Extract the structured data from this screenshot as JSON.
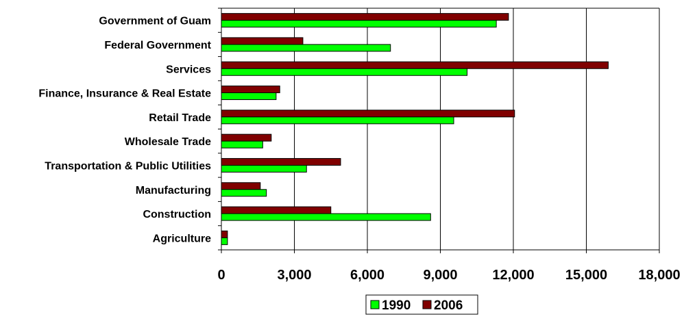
{
  "chart_data": {
    "type": "bar",
    "orientation": "horizontal",
    "categories": [
      "Government of Guam",
      "Federal Government",
      "Services",
      "Finance, Insurance & Real Estate",
      "Retail Trade",
      "Wholesale Trade",
      "Transportation & Public Utilities",
      "Manufacturing",
      "Construction",
      "Agriculture"
    ],
    "series": [
      {
        "name": "1990",
        "color": "#00ff00",
        "values": [
          11300,
          6950,
          10100,
          2250,
          9550,
          1700,
          3500,
          1850,
          8600,
          250
        ]
      },
      {
        "name": "2006",
        "color": "#800000",
        "values": [
          11800,
          3350,
          15900,
          2400,
          12050,
          2050,
          4900,
          1600,
          4500,
          250
        ]
      }
    ],
    "xlim": [
      0,
      18000
    ],
    "xticks": [
      0,
      3000,
      6000,
      9000,
      12000,
      15000,
      18000
    ],
    "xtick_labels": [
      "0",
      "3,000",
      "6,000",
      "9,000",
      "12,000",
      "15,000",
      "18,000"
    ],
    "grid": "vertical",
    "legend_position": "bottom-center",
    "title": "",
    "xlabel": "",
    "ylabel": ""
  }
}
